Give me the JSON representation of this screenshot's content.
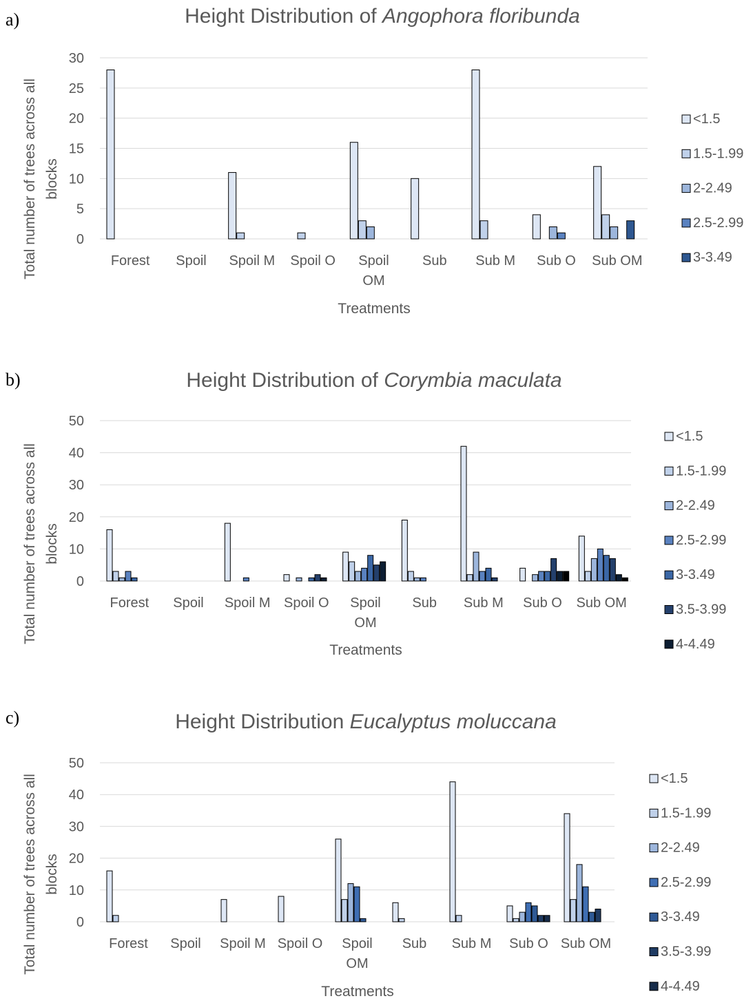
{
  "panels": [
    {
      "label": "a)",
      "chart_data": {
        "type": "bar",
        "title_prefix": "Height Distribution of ",
        "title_species": "Angophora floribunda",
        "xlabel": "Treatments",
        "ylabel_line1": "Total number of trees across all",
        "ylabel_line2": "blocks",
        "ylim": [
          0,
          30
        ],
        "yticks": [
          0,
          5,
          10,
          15,
          20,
          25,
          30
        ],
        "grid": true,
        "legend_position": "right",
        "categories": [
          [
            "Forest"
          ],
          [
            "Spoil"
          ],
          [
            "Spoil M"
          ],
          [
            "Spoil O"
          ],
          [
            "Spoil",
            "OM"
          ],
          [
            "Sub"
          ],
          [
            "Sub M"
          ],
          [
            "Sub O"
          ],
          [
            "Sub OM"
          ]
        ],
        "series": [
          {
            "name": "<1.5",
            "color": "#dde6f4",
            "values": [
              28,
              0,
              11,
              0,
              16,
              10,
              28,
              4,
              12
            ]
          },
          {
            "name": "1.5-1.99",
            "color": "#c0d1ea",
            "values": [
              0,
              0,
              1,
              1,
              3,
              0,
              3,
              0,
              4
            ]
          },
          {
            "name": "2-2.49",
            "color": "#9db6dc",
            "values": [
              0,
              0,
              0,
              0,
              2,
              0,
              0,
              2,
              2
            ]
          },
          {
            "name": "2.5-2.99",
            "color": "#5a82c0",
            "values": [
              0,
              0,
              0,
              0,
              0,
              0,
              0,
              1,
              0
            ]
          },
          {
            "name": "3-3.49",
            "color": "#2e5790",
            "values": [
              0,
              0,
              0,
              0,
              0,
              0,
              0,
              0,
              3
            ]
          }
        ]
      }
    },
    {
      "label": "b)",
      "chart_data": {
        "type": "bar",
        "title_prefix": "Height Distribution of ",
        "title_species": "Corymbia maculata",
        "xlabel": "Treatments",
        "ylabel_line1": "Total number of trees across all",
        "ylabel_line2": "blocks",
        "ylim": [
          0,
          50
        ],
        "yticks": [
          0,
          10,
          20,
          30,
          40,
          50
        ],
        "grid": true,
        "legend_position": "right",
        "categories": [
          [
            "Forest"
          ],
          [
            "Spoil"
          ],
          [
            "Spoil M"
          ],
          [
            "Spoil O"
          ],
          [
            "Spoil",
            "OM"
          ],
          [
            "Sub"
          ],
          [
            "Sub M"
          ],
          [
            "Sub O"
          ],
          [
            "Sub OM"
          ]
        ],
        "series": [
          {
            "name": "<1.5",
            "color": "#dde6f4",
            "values": [
              16,
              0,
              18,
              2,
              9,
              19,
              42,
              4,
              14
            ]
          },
          {
            "name": "1.5-1.99",
            "color": "#c0d1ea",
            "values": [
              3,
              0,
              0,
              0,
              6,
              3,
              2,
              0,
              3
            ]
          },
          {
            "name": "2-2.49",
            "color": "#9db6dc",
            "values": [
              1,
              0,
              0,
              1,
              3,
              1,
              9,
              2,
              7
            ]
          },
          {
            "name": "2.5-2.99",
            "color": "#5a82c0",
            "values": [
              3,
              0,
              1,
              0,
              4,
              1,
              3,
              3,
              10
            ]
          },
          {
            "name": "3-3.49",
            "color": "#3b67a6",
            "values": [
              1,
              0,
              0,
              1,
              8,
              0,
              4,
              3,
              8
            ]
          },
          {
            "name": "3.5-3.99",
            "color": "#24406c",
            "values": [
              0,
              0,
              0,
              2,
              5,
              0,
              1,
              7,
              7
            ]
          },
          {
            "name": "4-4.49",
            "color": "#0d1e33",
            "values": [
              0,
              0,
              0,
              1,
              6,
              0,
              0,
              3,
              2
            ]
          },
          {
            "name": "",
            "color": "#000000",
            "values": [
              0,
              0,
              0,
              0,
              0,
              0,
              0,
              3,
              1
            ]
          }
        ]
      }
    },
    {
      "label": "c)",
      "chart_data": {
        "type": "bar",
        "title_prefix": "Height Distribution ",
        "title_species": "Eucalyptus moluccana",
        "xlabel": "Treatments",
        "ylabel_line1": "Total number of trees across all",
        "ylabel_line2": "blocks",
        "ylim": [
          0,
          50
        ],
        "yticks": [
          0,
          10,
          20,
          30,
          40,
          50
        ],
        "grid": true,
        "legend_position": "right",
        "categories": [
          [
            "Forest"
          ],
          [
            "Spoil"
          ],
          [
            "Spoil M"
          ],
          [
            "Spoil O"
          ],
          [
            "Spoil",
            "OM"
          ],
          [
            "Sub"
          ],
          [
            "Sub M"
          ],
          [
            "Sub O"
          ],
          [
            "Sub OM"
          ]
        ],
        "series": [
          {
            "name": "<1.5",
            "color": "#dde6f4",
            "values": [
              16,
              0,
              7,
              8,
              26,
              6,
              44,
              5,
              34
            ]
          },
          {
            "name": "1.5-1.99",
            "color": "#c0d1ea",
            "values": [
              2,
              0,
              0,
              0,
              7,
              1,
              2,
              1,
              7
            ]
          },
          {
            "name": "2-2.49",
            "color": "#9db6dc",
            "values": [
              0,
              0,
              0,
              0,
              12,
              0,
              0,
              3,
              18
            ]
          },
          {
            "name": "2.5-2.99",
            "color": "#3f6eb3",
            "values": [
              0,
              0,
              0,
              0,
              11,
              0,
              0,
              6,
              11
            ]
          },
          {
            "name": "3-3.49",
            "color": "#2f5a96",
            "values": [
              0,
              0,
              0,
              0,
              1,
              0,
              0,
              5,
              3
            ]
          },
          {
            "name": "3.5-3.99",
            "color": "#1f3b63",
            "values": [
              0,
              0,
              0,
              0,
              0,
              0,
              0,
              2,
              4
            ]
          },
          {
            "name": "4-4.49",
            "color": "#172c4a",
            "values": [
              0,
              0,
              0,
              0,
              0,
              0,
              0,
              2,
              0
            ]
          }
        ]
      }
    }
  ]
}
